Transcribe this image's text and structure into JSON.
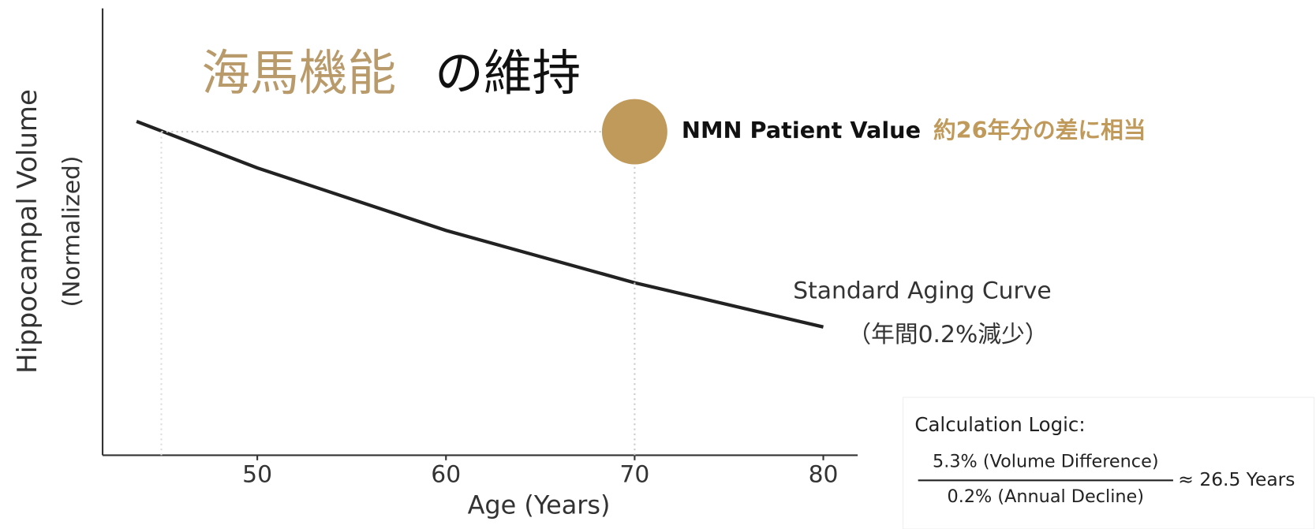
{
  "chart_data": {
    "type": "line",
    "title": "海馬機能",
    "title_suffix": "の維持",
    "x_label": "Age (Years)",
    "y_label": "Hippocampal Volume",
    "y_label_sub": "(Normalized)",
    "xlim": [
      41.8,
      82
    ],
    "xticks": [
      50,
      60,
      70,
      80
    ],
    "ylim": [
      0,
      1
    ],
    "series": [
      {
        "name": "Standard Aging Curve",
        "color": "#222222",
        "x": [
          43.6,
          50,
          60,
          70,
          80
        ],
        "values": [
          0.747,
          0.643,
          0.503,
          0.386,
          0.287
        ]
      }
    ],
    "series_note": "（年間0.2%減少）",
    "point": {
      "name": "NMN Patient Value",
      "color": "#c09a5b",
      "x": 70,
      "y": 0.724,
      "note": "約26年分の差に相当"
    },
    "calculation": {
      "heading": "Calculation Logic:",
      "numerator": "5.3% (Volume Difference)",
      "denominator": "0.2% (Annual Decline)",
      "result": "≈ 26.5 Years"
    }
  }
}
